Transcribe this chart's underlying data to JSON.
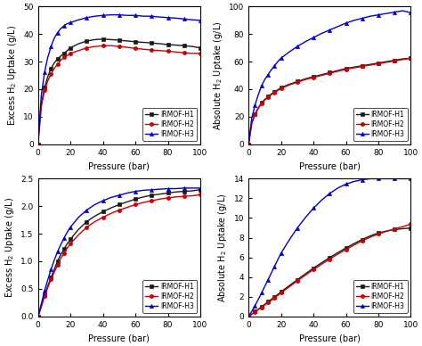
{
  "background_color": "#ffffff",
  "pressure_points": [
    0,
    2,
    4,
    6,
    8,
    10,
    12,
    14,
    16,
    18,
    20,
    25,
    30,
    35,
    40,
    45,
    50,
    55,
    60,
    65,
    70,
    75,
    80,
    85,
    90,
    95,
    100
  ],
  "top_left": {
    "ylabel": "Excess H$_2$ Uptake (g/L)",
    "xlabel": "Pressure (bar)",
    "ylim": [
      0,
      50
    ],
    "yticks": [
      0,
      10,
      20,
      30,
      40,
      50
    ],
    "xlim": [
      0,
      100
    ],
    "H1": [
      0,
      14.5,
      20.5,
      24.5,
      27.5,
      29.5,
      31.0,
      32.0,
      33.0,
      34.0,
      35.0,
      36.5,
      37.5,
      38.0,
      38.2,
      38.0,
      37.8,
      37.5,
      37.2,
      37.0,
      36.8,
      36.5,
      36.2,
      36.0,
      35.8,
      35.5,
      35.0
    ],
    "H2": [
      0,
      13.5,
      19.5,
      23.0,
      25.5,
      27.5,
      29.0,
      30.5,
      31.5,
      32.2,
      33.0,
      34.0,
      35.0,
      35.5,
      35.8,
      35.8,
      35.5,
      35.2,
      34.8,
      34.5,
      34.2,
      34.0,
      33.8,
      33.5,
      33.2,
      33.0,
      33.0
    ],
    "H3": [
      0,
      17.5,
      26.0,
      31.5,
      35.5,
      38.5,
      40.5,
      42.0,
      43.0,
      43.8,
      44.2,
      45.2,
      46.0,
      46.5,
      46.8,
      47.0,
      47.0,
      46.8,
      46.8,
      46.5,
      46.5,
      46.2,
      46.0,
      45.8,
      45.5,
      45.2,
      45.0
    ]
  },
  "top_right": {
    "ylabel": "Absolute H$_2$ Uptake (g/L)",
    "xlabel": "Pressure (bar)",
    "ylim": [
      0,
      100
    ],
    "yticks": [
      0,
      20,
      40,
      60,
      80,
      100
    ],
    "xlim": [
      0,
      100
    ],
    "H1": [
      0,
      15.5,
      22.0,
      26.5,
      30.0,
      32.5,
      34.5,
      36.5,
      38.0,
      39.5,
      41.0,
      43.5,
      45.5,
      47.5,
      49.0,
      50.5,
      52.0,
      53.5,
      55.0,
      56.0,
      57.0,
      58.0,
      59.0,
      60.0,
      61.0,
      62.0,
      62.5
    ],
    "H2": [
      0,
      15.0,
      21.5,
      26.0,
      29.5,
      32.0,
      34.0,
      36.0,
      37.5,
      39.0,
      40.5,
      43.0,
      45.0,
      47.0,
      48.5,
      50.0,
      51.5,
      53.0,
      54.5,
      55.5,
      56.5,
      57.5,
      58.5,
      59.5,
      60.5,
      61.5,
      62.5
    ],
    "H3": [
      0,
      19.0,
      28.5,
      36.0,
      42.5,
      47.0,
      50.5,
      54.0,
      57.0,
      60.0,
      62.5,
      67.0,
      71.0,
      74.5,
      77.5,
      80.5,
      83.0,
      85.5,
      88.0,
      90.0,
      91.5,
      93.0,
      94.0,
      95.0,
      96.0,
      97.0,
      95.5
    ]
  },
  "bottom_left": {
    "ylabel": "Excess H$_2$ Uptake (g/L)",
    "xlabel": "Pressure (bar)",
    "ylim": [
      0,
      2.5
    ],
    "yticks": [
      0.0,
      0.5,
      1.0,
      1.5,
      2.0,
      2.5
    ],
    "xlim": [
      0,
      100
    ],
    "H1": [
      0,
      0.18,
      0.38,
      0.55,
      0.7,
      0.85,
      1.0,
      1.12,
      1.22,
      1.32,
      1.4,
      1.58,
      1.72,
      1.82,
      1.9,
      1.97,
      2.03,
      2.08,
      2.13,
      2.17,
      2.2,
      2.22,
      2.24,
      2.26,
      2.27,
      2.28,
      2.3
    ],
    "H2": [
      0,
      0.17,
      0.36,
      0.52,
      0.67,
      0.8,
      0.93,
      1.05,
      1.15,
      1.24,
      1.32,
      1.48,
      1.62,
      1.72,
      1.8,
      1.87,
      1.93,
      1.98,
      2.03,
      2.07,
      2.1,
      2.13,
      2.15,
      2.17,
      2.18,
      2.19,
      2.21
    ],
    "H3": [
      0,
      0.22,
      0.46,
      0.66,
      0.85,
      1.02,
      1.17,
      1.3,
      1.42,
      1.53,
      1.62,
      1.8,
      1.93,
      2.03,
      2.1,
      2.16,
      2.2,
      2.24,
      2.27,
      2.29,
      2.3,
      2.31,
      2.32,
      2.32,
      2.33,
      2.33,
      2.33
    ]
  },
  "bottom_right": {
    "ylabel": "Absolute H$_2$ Uptake (g/L)",
    "xlabel": "Pressure (bar)",
    "ylim": [
      0,
      14
    ],
    "yticks": [
      0,
      2,
      4,
      6,
      8,
      10,
      12,
      14
    ],
    "xlim": [
      0,
      100
    ],
    "H1": [
      0,
      0.22,
      0.48,
      0.72,
      0.98,
      1.22,
      1.48,
      1.72,
      1.98,
      2.22,
      2.5,
      3.1,
      3.72,
      4.32,
      4.9,
      5.45,
      5.98,
      6.48,
      6.95,
      7.4,
      7.82,
      8.18,
      8.48,
      8.68,
      8.82,
      8.92,
      8.98
    ],
    "H2": [
      0,
      0.2,
      0.45,
      0.68,
      0.92,
      1.15,
      1.4,
      1.62,
      1.88,
      2.12,
      2.38,
      2.98,
      3.6,
      4.18,
      4.75,
      5.3,
      5.82,
      6.32,
      6.8,
      7.25,
      7.68,
      8.05,
      8.38,
      8.65,
      8.9,
      9.12,
      9.38
    ],
    "H3": [
      0,
      0.5,
      1.1,
      1.72,
      2.38,
      3.05,
      3.72,
      4.4,
      5.08,
      5.75,
      6.42,
      7.75,
      8.98,
      10.05,
      11.0,
      11.82,
      12.5,
      13.05,
      13.45,
      13.72,
      13.9,
      14.0,
      14.0,
      14.0,
      14.0,
      14.0,
      14.0
    ]
  },
  "colors": {
    "H1": "#1a1a1a",
    "H2": "#cc0000",
    "H3": "#0000cc"
  },
  "markers": {
    "H1": "s",
    "H2": "o",
    "H3": "^"
  },
  "legend_labels": [
    "IRMOF-H1",
    "IRMOF-H2",
    "IRMOF-H3"
  ],
  "marker_size": 3.0,
  "linewidth": 1.0,
  "markevery": 2
}
